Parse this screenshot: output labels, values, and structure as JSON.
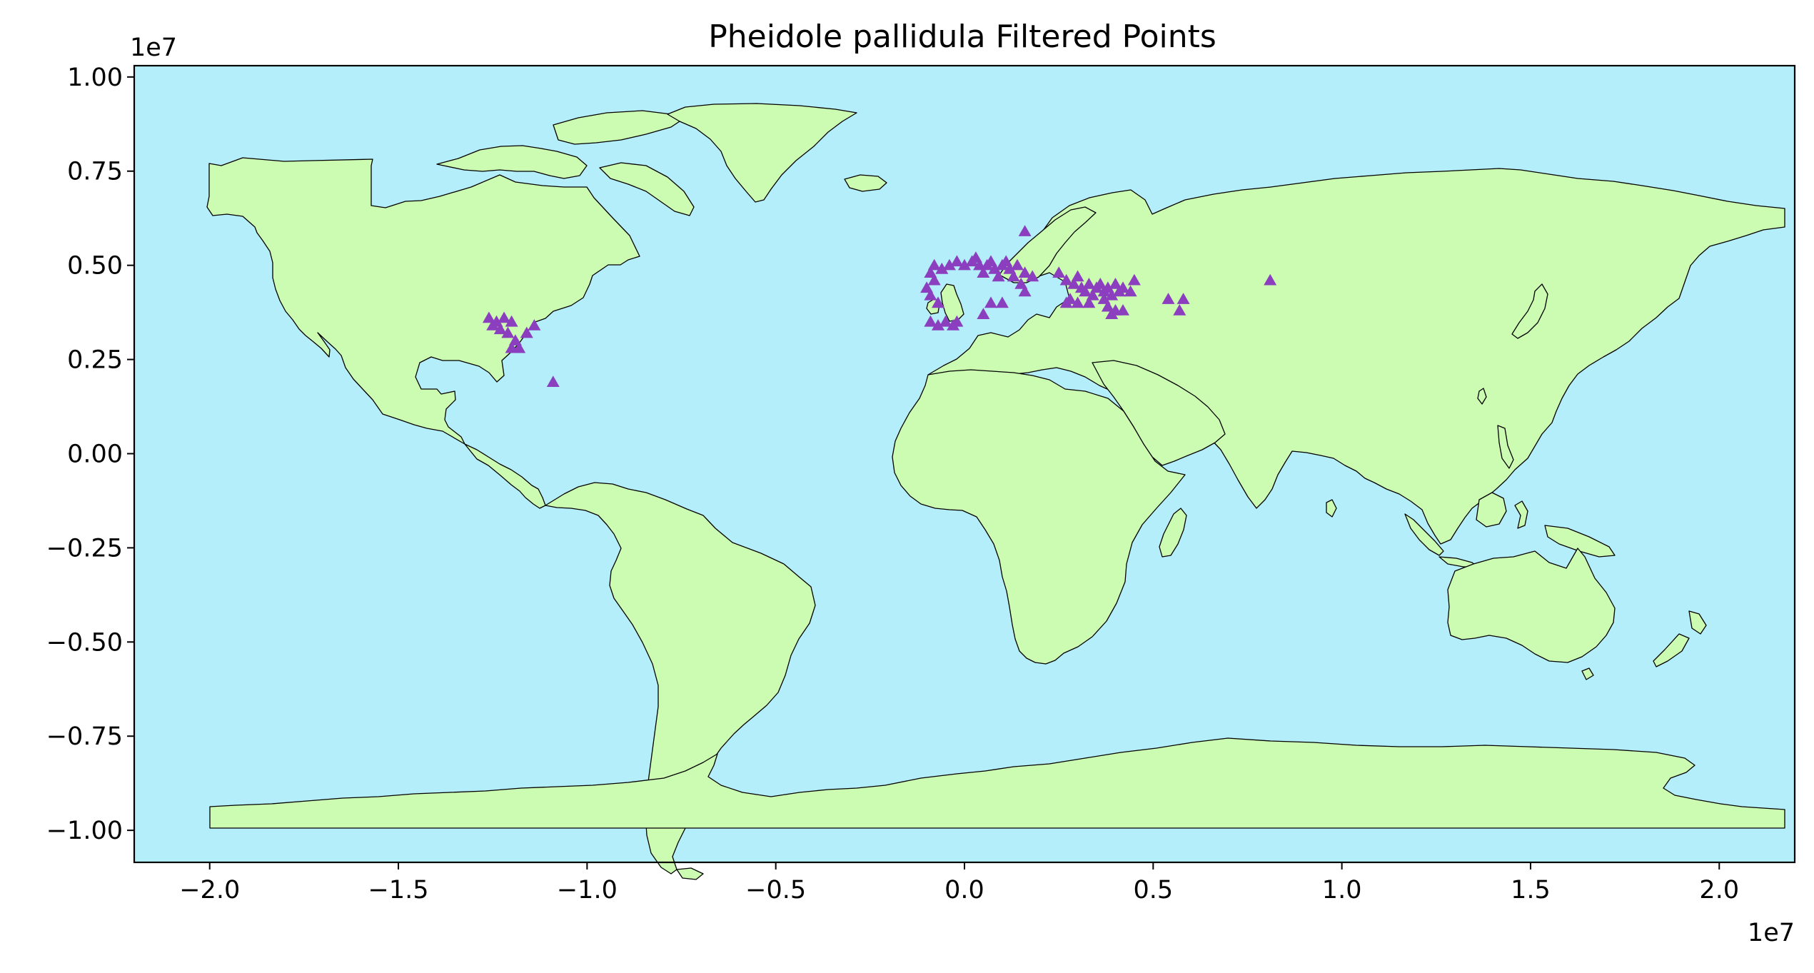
{
  "colors": {
    "ocean": "#b4eefa",
    "land": "#ccfcb2",
    "marker": "#8b3fbf",
    "axes": "#000000"
  },
  "marker_shape": "triangle-up",
  "chart_data": {
    "type": "scatter",
    "title": "Pheidole pallidula Filtered Points",
    "x_offset_label": "1e7",
    "y_offset_label": "1e7",
    "xlim": [
      -2.2,
      2.2
    ],
    "ylim": [
      -1.085,
      1.03
    ],
    "x_ticks": [
      {
        "value": -2.0,
        "label": "−2.0"
      },
      {
        "value": -1.5,
        "label": "−1.5"
      },
      {
        "value": -1.0,
        "label": "−1.0"
      },
      {
        "value": -0.5,
        "label": "−0.5"
      },
      {
        "value": 0.0,
        "label": "0.0"
      },
      {
        "value": 0.5,
        "label": "0.5"
      },
      {
        "value": 1.0,
        "label": "1.0"
      },
      {
        "value": 1.5,
        "label": "1.5"
      },
      {
        "value": 2.0,
        "label": "2.0"
      }
    ],
    "y_ticks": [
      {
        "value": 1.0,
        "label": "1.00"
      },
      {
        "value": 0.75,
        "label": "0.75"
      },
      {
        "value": 0.5,
        "label": "0.50"
      },
      {
        "value": 0.25,
        "label": "0.25"
      },
      {
        "value": 0.0,
        "label": "0.00"
      },
      {
        "value": -0.25,
        "label": "−0.25"
      },
      {
        "value": -0.5,
        "label": "−0.50"
      },
      {
        "value": -0.75,
        "label": "−0.75"
      },
      {
        "value": -1.0,
        "label": "−1.00"
      }
    ],
    "grid": false,
    "series": [
      {
        "points": [
          [
            -1.26,
            0.36
          ],
          [
            -1.24,
            0.35
          ],
          [
            -1.22,
            0.36
          ],
          [
            -1.2,
            0.35
          ],
          [
            -1.23,
            0.33
          ],
          [
            -1.21,
            0.32
          ],
          [
            -1.19,
            0.3
          ],
          [
            -1.2,
            0.28
          ],
          [
            -1.18,
            0.28
          ],
          [
            -1.16,
            0.32
          ],
          [
            -1.14,
            0.34
          ],
          [
            -1.25,
            0.34
          ],
          [
            -1.09,
            0.19
          ],
          [
            -0.1,
            0.44
          ],
          [
            -0.09,
            0.42
          ],
          [
            -0.08,
            0.46
          ],
          [
            -0.07,
            0.4
          ],
          [
            -0.09,
            0.35
          ],
          [
            -0.07,
            0.34
          ],
          [
            -0.05,
            0.35
          ],
          [
            -0.03,
            0.34
          ],
          [
            -0.02,
            0.35
          ],
          [
            -0.09,
            0.48
          ],
          [
            -0.08,
            0.5
          ],
          [
            -0.06,
            0.49
          ],
          [
            -0.04,
            0.5
          ],
          [
            -0.02,
            0.51
          ],
          [
            0.0,
            0.5
          ],
          [
            0.02,
            0.51
          ],
          [
            0.04,
            0.5
          ],
          [
            0.06,
            0.5
          ],
          [
            0.08,
            0.49
          ],
          [
            0.1,
            0.5
          ],
          [
            0.12,
            0.49
          ],
          [
            0.14,
            0.5
          ],
          [
            0.16,
            0.48
          ],
          [
            0.18,
            0.47
          ],
          [
            0.03,
            0.52
          ],
          [
            0.05,
            0.48
          ],
          [
            0.07,
            0.51
          ],
          [
            0.11,
            0.51
          ],
          [
            0.13,
            0.47
          ],
          [
            0.15,
            0.45
          ],
          [
            0.09,
            0.47
          ],
          [
            0.07,
            0.4
          ],
          [
            0.05,
            0.37
          ],
          [
            0.1,
            0.4
          ],
          [
            0.16,
            0.43
          ],
          [
            0.16,
            0.59
          ],
          [
            0.25,
            0.48
          ],
          [
            0.27,
            0.46
          ],
          [
            0.29,
            0.45
          ],
          [
            0.3,
            0.47
          ],
          [
            0.31,
            0.44
          ],
          [
            0.32,
            0.43
          ],
          [
            0.33,
            0.45
          ],
          [
            0.34,
            0.42
          ],
          [
            0.35,
            0.44
          ],
          [
            0.36,
            0.45
          ],
          [
            0.37,
            0.43
          ],
          [
            0.38,
            0.44
          ],
          [
            0.39,
            0.42
          ],
          [
            0.4,
            0.45
          ],
          [
            0.41,
            0.43
          ],
          [
            0.42,
            0.44
          ],
          [
            0.44,
            0.43
          ],
          [
            0.45,
            0.46
          ],
          [
            0.28,
            0.41
          ],
          [
            0.3,
            0.4
          ],
          [
            0.33,
            0.4
          ],
          [
            0.37,
            0.41
          ],
          [
            0.38,
            0.39
          ],
          [
            0.4,
            0.38
          ],
          [
            0.42,
            0.38
          ],
          [
            0.39,
            0.37
          ],
          [
            0.27,
            0.4
          ],
          [
            0.54,
            0.41
          ],
          [
            0.58,
            0.41
          ],
          [
            0.57,
            0.38
          ],
          [
            0.81,
            0.46
          ]
        ]
      }
    ]
  }
}
